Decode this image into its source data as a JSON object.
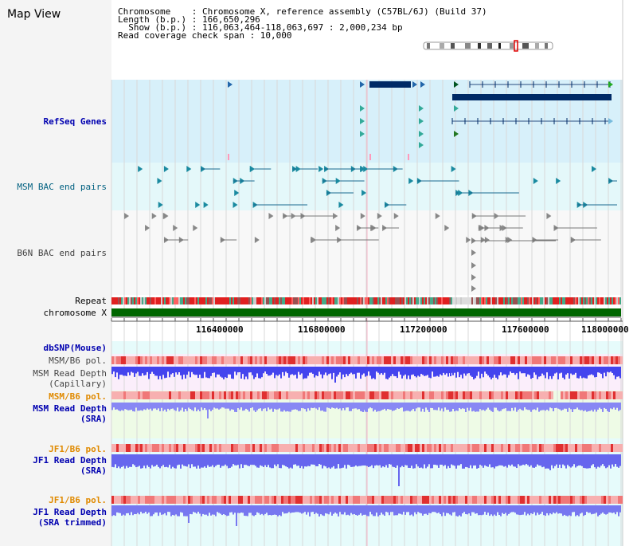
{
  "title": "Map View",
  "info": {
    "chromosome_line": "Chromosome    : Chromosome X, reference assembly (C57BL/6J) (Build 37)",
    "length_line": "Length (b.p.) : 166,650,296",
    "show_line": "  Show (b.p.) : 116,063,464-118,063,697 : 2,000,234 bp",
    "coverage_line": "Read coverage check span : 10,000"
  },
  "tracks": {
    "refseq": "RefSeq Genes",
    "msm_bac": "MSM BAC end pairs",
    "b6n_bac": "B6N BAC end pairs",
    "repeat": "Repeat",
    "chromosome": "chromosome X",
    "dbsnp": "dbSNP(Mouse)",
    "msm_b6_pol_1": "MSM/B6 pol.",
    "msm_read_depth_cap": "MSM Read Depth\n(Capillary)",
    "msm_b6_pol_2": "MSM/B6 pol.",
    "msm_read_depth_sra": "MSM Read Depth\n(SRA)",
    "jf1_b6_pol": "JF1/B6 pol.",
    "jf1_read_depth_sra": "JF1 Read Depth\n(SRA)",
    "jf1_b6_pol_2": "JF1/B6 pol.",
    "jf1_read_depth_trim": "JF1 Read Depth\n(SRA trimmed)"
  },
  "axis": {
    "ticks": [
      "116400000",
      "116800000",
      "117200000",
      "117600000",
      "118000000"
    ]
  },
  "colors": {
    "refseq_bg": "#d7f0fa",
    "bac_bg": "#e4f8fa",
    "gene_dark": "#002a66",
    "repeat_red": "#e02020",
    "chromosome_green": "#006600",
    "depth_blue": "#3333ee",
    "pol_red": "#f08080"
  }
}
